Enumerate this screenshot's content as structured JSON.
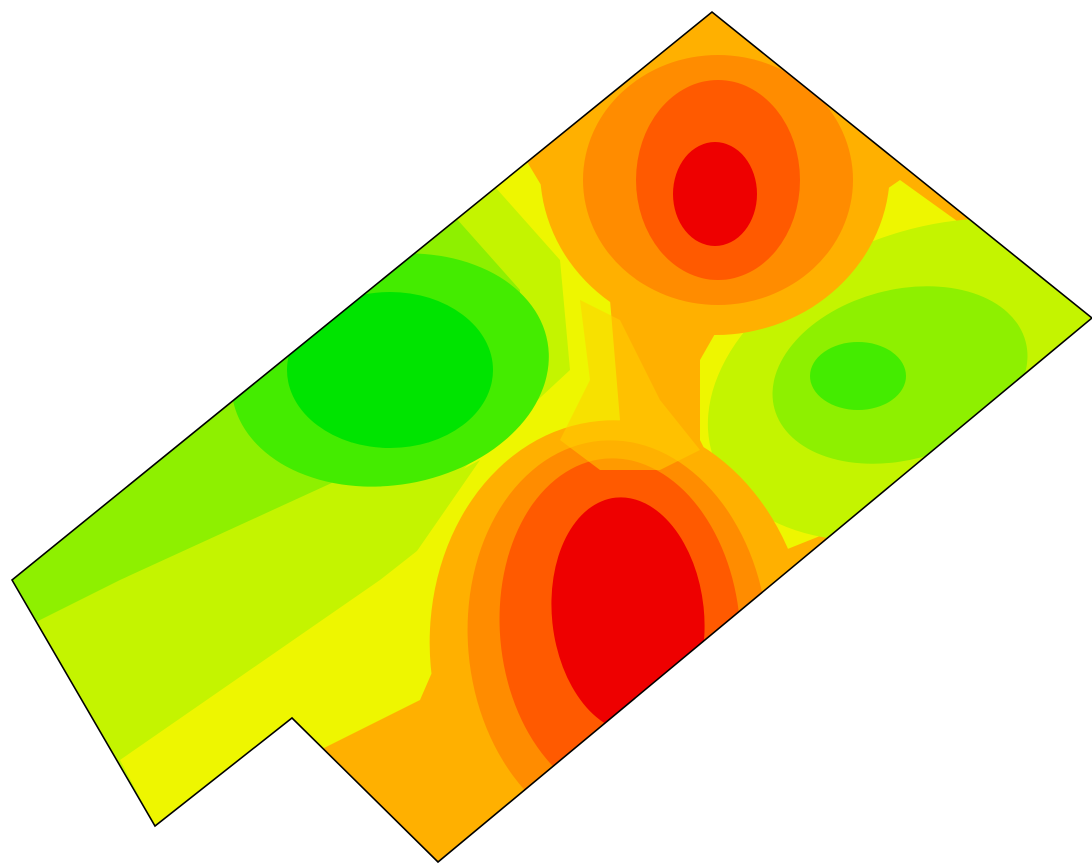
{
  "map": {
    "type": "contour-heatmap",
    "legend": "none",
    "palette": {
      "bg": "#ffffff",
      "outline": "#000000",
      "c0": "#00e400",
      "c1": "#44ec00",
      "c2": "#8ef000",
      "c3": "#c4f400",
      "c4": "#eef600",
      "c5": "#ffd000",
      "c6": "#ffb000",
      "c7": "#ff8c00",
      "c8": "#ff5a00",
      "c9": "#ee0000"
    },
    "levels": [
      {
        "name": "band-green",
        "color_key": "c0"
      },
      {
        "name": "band-bright-green",
        "color_key": "c1"
      },
      {
        "name": "band-yellow-green",
        "color_key": "c2"
      },
      {
        "name": "band-lime",
        "color_key": "c3"
      },
      {
        "name": "band-yellow",
        "color_key": "c4"
      },
      {
        "name": "band-light-orange",
        "color_key": "c5"
      },
      {
        "name": "band-orange",
        "color_key": "c6"
      },
      {
        "name": "band-dark-orange",
        "color_key": "c7"
      },
      {
        "name": "band-red-orange",
        "color_key": "c8"
      },
      {
        "name": "band-red",
        "color_key": "c9"
      }
    ]
  }
}
